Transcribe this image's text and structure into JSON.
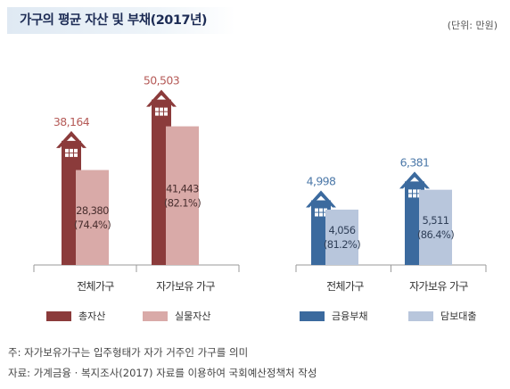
{
  "title": "가구의 평균 자산 및 부채(2017년)",
  "unit": "(단위: 만원)",
  "colors": {
    "total_assets": "#8b3b3b",
    "real_assets": "#d9aaa8",
    "financial_debt": "#3b6a9e",
    "mortgage": "#b8c6dc",
    "total_label": "#b55a57",
    "debt_label": "#4d79a9"
  },
  "chart_data": [
    {
      "type": "bar",
      "categories": [
        "전체가구",
        "자가보유 가구"
      ],
      "series": [
        {
          "name": "총자산",
          "values": [
            38164,
            50503
          ],
          "labels": [
            "38,164",
            "50,503"
          ]
        },
        {
          "name": "실물자산",
          "values": [
            28380,
            41443
          ],
          "labels": [
            "28,380\n(74.4%)",
            "41,443\n(82.1%)"
          ]
        }
      ],
      "legend": [
        "총자산",
        "실물자산"
      ]
    },
    {
      "type": "bar",
      "categories": [
        "전체가구",
        "자가보유 가구"
      ],
      "series": [
        {
          "name": "금융부채",
          "values": [
            4998,
            6381
          ],
          "labels": [
            "4,998",
            "6,381"
          ]
        },
        {
          "name": "담보대출",
          "values": [
            4056,
            5511
          ],
          "labels": [
            "4,056\n(81.2%)",
            "5,511\n(86.4%)"
          ]
        }
      ],
      "legend": [
        "금융부채",
        "담보대출"
      ]
    }
  ],
  "notes": [
    "주: 자가보유가구는 입주형태가 자가 거주인 가구를 의미",
    "자료: 가계금융 · 복지조사(2017) 자료를 이용하여 국회예산정책처 작성"
  ]
}
